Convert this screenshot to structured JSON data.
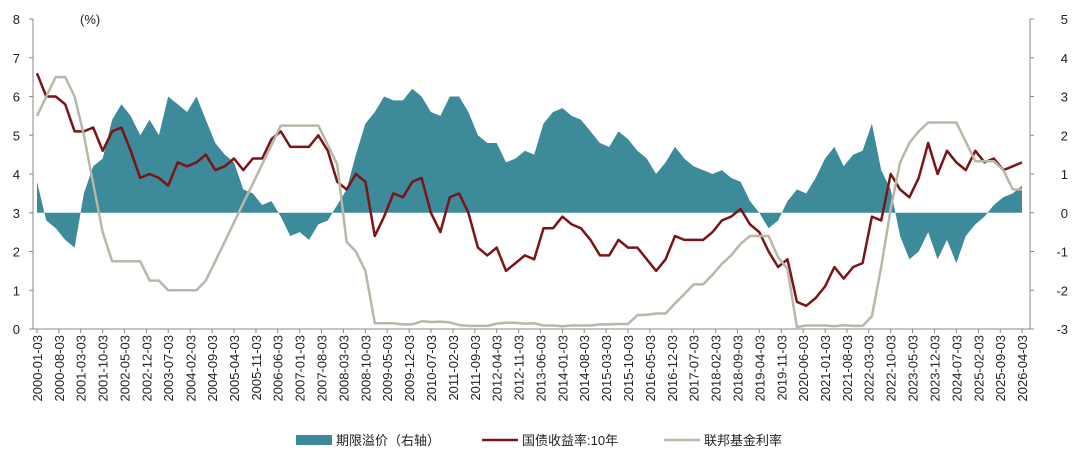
{
  "chart_data": {
    "type": "line",
    "y_label": "(%)",
    "x": [
      "2000-01-03",
      "2000-04-03",
      "2000-07-03",
      "2000-10-03",
      "2001-01-03",
      "2001-04-03",
      "2001-07-03",
      "2001-10-03",
      "2002-01-03",
      "2002-04-03",
      "2002-07-03",
      "2002-10-03",
      "2003-01-03",
      "2003-04-03",
      "2003-07-03",
      "2003-10-03",
      "2004-01-03",
      "2004-04-03",
      "2004-07-03",
      "2004-10-03",
      "2005-01-03",
      "2005-04-03",
      "2005-07-03",
      "2005-10-03",
      "2006-01-03",
      "2006-04-03",
      "2006-07-03",
      "2006-10-03",
      "2007-01-03",
      "2007-04-03",
      "2007-07-03",
      "2007-10-03",
      "2008-01-03",
      "2008-04-03",
      "2008-07-03",
      "2008-10-03",
      "2009-01-03",
      "2009-04-03",
      "2009-07-03",
      "2009-10-03",
      "2010-01-03",
      "2010-04-03",
      "2010-07-03",
      "2010-10-03",
      "2011-01-03",
      "2011-04-03",
      "2011-07-03",
      "2011-10-03",
      "2012-01-03",
      "2012-04-03",
      "2012-07-03",
      "2012-10-03",
      "2013-01-03",
      "2013-04-03",
      "2013-07-03",
      "2013-10-03",
      "2014-01-03",
      "2014-04-03",
      "2014-07-03",
      "2014-10-03",
      "2015-01-03",
      "2015-04-03",
      "2015-07-03",
      "2015-10-03",
      "2016-01-03",
      "2016-04-03",
      "2016-07-03",
      "2016-10-03",
      "2017-01-03",
      "2017-04-03",
      "2017-07-03",
      "2017-10-03",
      "2018-01-03",
      "2018-04-03",
      "2018-07-03",
      "2018-10-03",
      "2019-01-03",
      "2019-04-03",
      "2019-07-03",
      "2019-10-03",
      "2020-01-03",
      "2020-04-03",
      "2020-07-03",
      "2020-10-03",
      "2021-01-03",
      "2021-04-03",
      "2021-07-03",
      "2021-10-03",
      "2022-01-03",
      "2022-04-03",
      "2022-07-03",
      "2022-10-03",
      "2023-01-03",
      "2023-04-03",
      "2023-07-03",
      "2023-10-03",
      "2024-01-03",
      "2024-04-03",
      "2024-07-03",
      "2024-10-03",
      "2025-01-03",
      "2025-04-03",
      "2025-07-03",
      "2025-10-03",
      "2026-01-03",
      "2026-04-03"
    ],
    "xticks": [
      "2000-01-03",
      "2000-08-03",
      "2001-03-03",
      "2001-10-03",
      "2002-05-03",
      "2002-12-03",
      "2003-07-03",
      "2004-02-03",
      "2004-09-03",
      "2005-04-03",
      "2005-11-03",
      "2006-06-03",
      "2007-01-03",
      "2007-08-03",
      "2008-03-03",
      "2008-10-03",
      "2009-05-03",
      "2009-12-03",
      "2010-07-03",
      "2011-02-03",
      "2011-09-03",
      "2012-04-03",
      "2012-11-03",
      "2013-06-03",
      "2014-01-03",
      "2014-08-03",
      "2015-03-03",
      "2015-10-03",
      "2016-05-03",
      "2016-12-03",
      "2017-07-03",
      "2018-02-03",
      "2018-09-03",
      "2019-04-03",
      "2019-11-03",
      "2020-06-03",
      "2021-01-03",
      "2021-08-03",
      "2022-03-03",
      "2022-10-03",
      "2023-05-03",
      "2023-12-03",
      "2024-07-03",
      "2025-02-03",
      "2025-09-03",
      "2026-04-03"
    ],
    "ylim": [
      0,
      8
    ],
    "yticks": [
      0,
      1,
      2,
      3,
      4,
      5,
      6,
      7,
      8
    ],
    "y2lim": [
      -3,
      5
    ],
    "y2ticks": [
      -3,
      -2,
      -1,
      0,
      1,
      2,
      3,
      4,
      5
    ],
    "legend": "bottom",
    "series": [
      {
        "name": "期限溢价（右轴）",
        "kind": "area",
        "axis": "y2",
        "color": "#3c8a9a",
        "values": [
          0.8,
          -0.2,
          -0.4,
          -0.7,
          -0.9,
          0.5,
          1.2,
          1.4,
          2.4,
          2.8,
          2.5,
          2.0,
          2.4,
          2.0,
          3.0,
          2.8,
          2.6,
          3.0,
          2.4,
          1.8,
          1.5,
          1.3,
          0.6,
          0.5,
          0.2,
          0.3,
          -0.1,
          -0.6,
          -0.5,
          -0.7,
          -0.3,
          -0.2,
          0.2,
          0.6,
          1.5,
          2.3,
          2.6,
          3.0,
          2.9,
          2.9,
          3.2,
          3.0,
          2.6,
          2.5,
          3.0,
          3.0,
          2.6,
          2.0,
          1.8,
          1.8,
          1.3,
          1.4,
          1.6,
          1.5,
          2.3,
          2.6,
          2.7,
          2.5,
          2.4,
          2.1,
          1.8,
          1.7,
          2.1,
          1.9,
          1.6,
          1.4,
          1.0,
          1.3,
          1.7,
          1.4,
          1.2,
          1.1,
          1.0,
          1.1,
          0.9,
          0.8,
          0.3,
          0.0,
          -0.4,
          -0.2,
          0.3,
          0.6,
          0.5,
          0.9,
          1.4,
          1.7,
          1.2,
          1.5,
          1.6,
          2.3,
          1.1,
          0.6,
          -0.6,
          -1.2,
          -1.0,
          -0.5,
          -1.2,
          -0.7,
          -1.3,
          -0.6,
          -0.3,
          -0.1,
          0.2,
          0.4,
          0.5,
          0.7
        ]
      },
      {
        "name": "国债收益率:10年",
        "kind": "line",
        "color": "#7b1416",
        "values": [
          6.6,
          6.0,
          6.0,
          5.8,
          5.1,
          5.1,
          5.2,
          4.6,
          5.1,
          5.2,
          4.6,
          3.9,
          4.0,
          3.9,
          3.7,
          4.3,
          4.2,
          4.3,
          4.5,
          4.1,
          4.2,
          4.4,
          4.1,
          4.4,
          4.4,
          4.9,
          5.1,
          4.7,
          4.7,
          4.7,
          5.0,
          4.6,
          3.8,
          3.6,
          4.0,
          3.8,
          2.4,
          2.9,
          3.5,
          3.4,
          3.8,
          3.9,
          3.0,
          2.5,
          3.4,
          3.5,
          3.0,
          2.1,
          1.9,
          2.1,
          1.5,
          1.7,
          1.9,
          1.8,
          2.6,
          2.6,
          2.9,
          2.7,
          2.6,
          2.3,
          1.9,
          1.9,
          2.3,
          2.1,
          2.1,
          1.8,
          1.5,
          1.8,
          2.4,
          2.3,
          2.3,
          2.3,
          2.5,
          2.8,
          2.9,
          3.1,
          2.7,
          2.5,
          2.0,
          1.6,
          1.8,
          0.7,
          0.6,
          0.8,
          1.1,
          1.6,
          1.3,
          1.6,
          1.7,
          2.9,
          2.8,
          4.0,
          3.6,
          3.4,
          3.9,
          4.8,
          4.0,
          4.6,
          4.3,
          4.1,
          4.6,
          4.3,
          4.4,
          4.1,
          4.2,
          4.3
        ]
      },
      {
        "name": "联邦基金利率",
        "kind": "line",
        "color": "#b8b8a8",
        "values": [
          5.5,
          6.0,
          6.5,
          6.5,
          6.0,
          5.0,
          3.75,
          2.5,
          1.75,
          1.75,
          1.75,
          1.75,
          1.25,
          1.25,
          1.0,
          1.0,
          1.0,
          1.0,
          1.25,
          1.75,
          2.25,
          2.75,
          3.25,
          3.75,
          4.25,
          4.75,
          5.25,
          5.25,
          5.25,
          5.25,
          5.25,
          4.75,
          4.25,
          2.25,
          2.0,
          1.5,
          0.15,
          0.15,
          0.15,
          0.12,
          0.12,
          0.2,
          0.18,
          0.19,
          0.17,
          0.1,
          0.08,
          0.08,
          0.08,
          0.14,
          0.16,
          0.16,
          0.14,
          0.15,
          0.09,
          0.09,
          0.07,
          0.09,
          0.09,
          0.09,
          0.12,
          0.12,
          0.13,
          0.13,
          0.36,
          0.37,
          0.4,
          0.4,
          0.66,
          0.9,
          1.15,
          1.15,
          1.4,
          1.68,
          1.9,
          2.2,
          2.4,
          2.4,
          2.4,
          1.85,
          1.55,
          0.05,
          0.09,
          0.09,
          0.09,
          0.07,
          0.1,
          0.08,
          0.08,
          0.33,
          1.6,
          3.1,
          4.3,
          4.8,
          5.1,
          5.33,
          5.33,
          5.33,
          5.33,
          4.83,
          4.33,
          4.33,
          4.33,
          4.1,
          3.6,
          3.6
        ]
      }
    ]
  }
}
